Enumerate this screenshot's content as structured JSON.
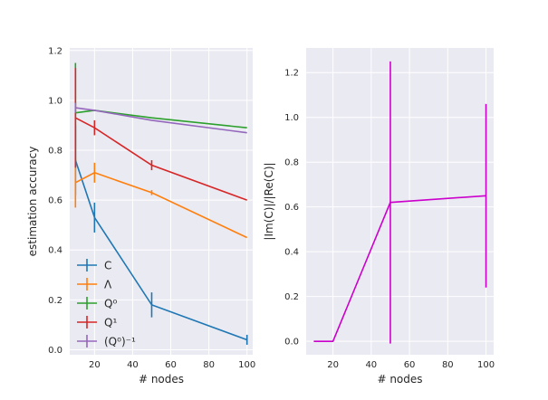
{
  "chart_data": [
    {
      "type": "line",
      "xlabel": "# nodes",
      "ylabel": "estimation accuracy",
      "xlim": [
        7,
        103
      ],
      "ylim": [
        -0.02,
        1.21
      ],
      "xticks": [
        20,
        40,
        60,
        80,
        100
      ],
      "yticks": [
        0.0,
        0.2,
        0.4,
        0.6,
        0.8,
        1.0,
        1.2
      ],
      "xtick_labels": [
        "20",
        "40",
        "60",
        "80",
        "100"
      ],
      "ytick_labels": [
        "0.0",
        "0.2",
        "0.4",
        "0.6",
        "0.8",
        "1.0",
        "1.2"
      ],
      "grid": true,
      "legend": "lower-left",
      "x": [
        10,
        20,
        50,
        100
      ],
      "series": [
        {
          "name": "C",
          "legend_label": "C",
          "color": "#1f77b4",
          "values": [
            0.76,
            0.53,
            0.18,
            0.04
          ],
          "errors": [
            0.14,
            0.06,
            0.05,
            0.02
          ]
        },
        {
          "name": "Λ",
          "legend_label": "Λ",
          "color": "#ff7f0e",
          "values": [
            0.67,
            0.71,
            0.63,
            0.45
          ],
          "errors": [
            0.1,
            0.04,
            0.01,
            0.0
          ]
        },
        {
          "name": "Q^0",
          "legend_label": "Q⁰",
          "color": "#2ca02c",
          "values": [
            0.95,
            0.96,
            0.93,
            0.89
          ],
          "errors": [
            0.2,
            0.0,
            0.0,
            0.0
          ]
        },
        {
          "name": "Q^1",
          "legend_label": "Q¹",
          "color": "#d62728",
          "values": [
            0.93,
            0.89,
            0.74,
            0.6
          ],
          "errors": [
            0.2,
            0.03,
            0.02,
            0.0
          ]
        },
        {
          "name": "(Q^0)^-1",
          "legend_label": "(Q⁰)⁻¹",
          "color": "#9467bd",
          "values": [
            0.97,
            0.96,
            0.92,
            0.87
          ],
          "errors": [
            0.02,
            0.0,
            0.0,
            0.0
          ]
        }
      ]
    },
    {
      "type": "line",
      "xlabel": "# nodes",
      "ylabel": "|Im(C)|/|Re(C)|",
      "xlim": [
        6,
        104
      ],
      "ylim": [
        -0.06,
        1.31
      ],
      "xticks": [
        20,
        40,
        60,
        80,
        100
      ],
      "yticks": [
        0.0,
        0.2,
        0.4,
        0.6,
        0.8,
        1.0,
        1.2
      ],
      "xtick_labels": [
        "20",
        "40",
        "60",
        "80",
        "100"
      ],
      "ytick_labels": [
        "0.0",
        "0.2",
        "0.4",
        "0.6",
        "0.8",
        "1.0",
        "1.2"
      ],
      "grid": true,
      "x": [
        10,
        20,
        50,
        100
      ],
      "series": [
        {
          "name": "",
          "color": "#cc00cc",
          "values": [
            0.0,
            0.0,
            0.62,
            0.65
          ],
          "errors": [
            0.0,
            0.0,
            0.63,
            0.41
          ]
        }
      ]
    }
  ]
}
